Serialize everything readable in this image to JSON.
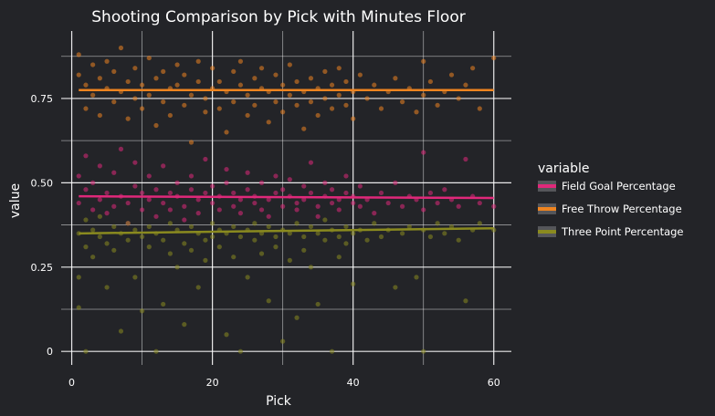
{
  "chart_data": {
    "type": "scatter",
    "title": "Shooting Comparison by Pick with Minutes Floor",
    "xlabel": "Pick",
    "ylabel": "value",
    "xlim": [
      -1.5,
      62.5
    ],
    "ylim": [
      -0.04,
      0.95
    ],
    "x_ticks": [
      0,
      20,
      40,
      60
    ],
    "x_tick_labels": [
      "0",
      "20",
      "40",
      "60"
    ],
    "y_ticks": [
      0,
      0.25,
      0.5,
      0.75
    ],
    "y_tick_labels": [
      "0",
      "0.25",
      "0.50",
      "0.75"
    ],
    "grid": true,
    "legend": {
      "title": "variable",
      "position": "right",
      "entries": [
        "Field Goal Percentage",
        "Free Throw Percentage",
        "Three Point Percentage"
      ]
    },
    "series": [
      {
        "name": "Field Goal Percentage",
        "color": "#e0287a",
        "trend": [
          [
            1,
            0.46
          ],
          [
            60,
            0.455
          ]
        ],
        "points": [
          [
            1,
            0.52
          ],
          [
            1,
            0.44
          ],
          [
            2,
            0.48
          ],
          [
            2,
            0.58
          ],
          [
            3,
            0.42
          ],
          [
            3,
            0.5
          ],
          [
            4,
            0.45
          ],
          [
            4,
            0.55
          ],
          [
            5,
            0.41
          ],
          [
            5,
            0.47
          ],
          [
            6,
            0.43
          ],
          [
            6,
            0.53
          ],
          [
            7,
            0.46
          ],
          [
            7,
            0.6
          ],
          [
            8,
            0.44
          ],
          [
            8,
            0.38
          ],
          [
            9,
            0.49
          ],
          [
            9,
            0.56
          ],
          [
            10,
            0.42
          ],
          [
            10,
            0.47
          ],
          [
            11,
            0.45
          ],
          [
            11,
            0.52
          ],
          [
            12,
            0.4
          ],
          [
            12,
            0.48
          ],
          [
            13,
            0.44
          ],
          [
            13,
            0.55
          ],
          [
            14,
            0.47
          ],
          [
            14,
            0.42
          ],
          [
            15,
            0.5
          ],
          [
            15,
            0.46
          ],
          [
            16,
            0.43
          ],
          [
            16,
            0.39
          ],
          [
            17,
            0.48
          ],
          [
            17,
            0.52
          ],
          [
            18,
            0.45
          ],
          [
            18,
            0.41
          ],
          [
            19,
            0.47
          ],
          [
            19,
            0.57
          ],
          [
            20,
            0.44
          ],
          [
            20,
            0.49
          ],
          [
            21,
            0.42
          ],
          [
            21,
            0.46
          ],
          [
            22,
            0.5
          ],
          [
            22,
            0.54
          ],
          [
            23,
            0.43
          ],
          [
            23,
            0.47
          ],
          [
            24,
            0.45
          ],
          [
            24,
            0.41
          ],
          [
            25,
            0.48
          ],
          [
            25,
            0.53
          ],
          [
            26,
            0.44
          ],
          [
            26,
            0.46
          ],
          [
            27,
            0.42
          ],
          [
            27,
            0.5
          ],
          [
            28,
            0.45
          ],
          [
            28,
            0.4
          ],
          [
            29,
            0.47
          ],
          [
            29,
            0.52
          ],
          [
            30,
            0.43
          ],
          [
            30,
            0.48
          ],
          [
            31,
            0.46
          ],
          [
            31,
            0.51
          ],
          [
            32,
            0.44
          ],
          [
            32,
            0.42
          ],
          [
            33,
            0.49
          ],
          [
            33,
            0.45
          ],
          [
            34,
            0.47
          ],
          [
            34,
            0.56
          ],
          [
            35,
            0.43
          ],
          [
            35,
            0.4
          ],
          [
            36,
            0.46
          ],
          [
            36,
            0.5
          ],
          [
            37,
            0.44
          ],
          [
            37,
            0.48
          ],
          [
            38,
            0.45
          ],
          [
            38,
            0.42
          ],
          [
            39,
            0.47
          ],
          [
            39,
            0.52
          ],
          [
            40,
            0.44
          ],
          [
            40,
            0.46
          ],
          [
            41,
            0.43
          ],
          [
            41,
            0.49
          ],
          [
            42,
            0.45
          ],
          [
            43,
            0.41
          ],
          [
            44,
            0.47
          ],
          [
            45,
            0.44
          ],
          [
            46,
            0.5
          ],
          [
            47,
            0.43
          ],
          [
            48,
            0.46
          ],
          [
            49,
            0.45
          ],
          [
            50,
            0.42
          ],
          [
            50,
            0.59
          ],
          [
            51,
            0.47
          ],
          [
            52,
            0.44
          ],
          [
            53,
            0.48
          ],
          [
            54,
            0.45
          ],
          [
            55,
            0.43
          ],
          [
            56,
            0.57
          ],
          [
            57,
            0.46
          ],
          [
            58,
            0.44
          ],
          [
            60,
            0.43
          ]
        ]
      },
      {
        "name": "Free Throw Percentage",
        "color": "#ee8420",
        "trend": [
          [
            1,
            0.775
          ],
          [
            60,
            0.775
          ]
        ],
        "points": [
          [
            1,
            0.82
          ],
          [
            1,
            0.88
          ],
          [
            2,
            0.72
          ],
          [
            2,
            0.79
          ],
          [
            3,
            0.85
          ],
          [
            3,
            0.76
          ],
          [
            4,
            0.81
          ],
          [
            4,
            0.7
          ],
          [
            5,
            0.78
          ],
          [
            5,
            0.86
          ],
          [
            6,
            0.74
          ],
          [
            6,
            0.83
          ],
          [
            7,
            0.9
          ],
          [
            7,
            0.77
          ],
          [
            8,
            0.8
          ],
          [
            8,
            0.69
          ],
          [
            9,
            0.75
          ],
          [
            9,
            0.84
          ],
          [
            10,
            0.79
          ],
          [
            10,
            0.72
          ],
          [
            11,
            0.87
          ],
          [
            11,
            0.76
          ],
          [
            12,
            0.81
          ],
          [
            12,
            0.67
          ],
          [
            13,
            0.74
          ],
          [
            13,
            0.83
          ],
          [
            14,
            0.78
          ],
          [
            14,
            0.7
          ],
          [
            15,
            0.85
          ],
          [
            15,
            0.79
          ],
          [
            16,
            0.73
          ],
          [
            16,
            0.82
          ],
          [
            17,
            0.76
          ],
          [
            17,
            0.62
          ],
          [
            18,
            0.8
          ],
          [
            18,
            0.86
          ],
          [
            19,
            0.75
          ],
          [
            19,
            0.71
          ],
          [
            20,
            0.78
          ],
          [
            20,
            0.84
          ],
          [
            21,
            0.72
          ],
          [
            21,
            0.8
          ],
          [
            22,
            0.77
          ],
          [
            22,
            0.65
          ],
          [
            23,
            0.83
          ],
          [
            23,
            0.74
          ],
          [
            24,
            0.79
          ],
          [
            24,
            0.86
          ],
          [
            25,
            0.7
          ],
          [
            25,
            0.76
          ],
          [
            26,
            0.81
          ],
          [
            26,
            0.73
          ],
          [
            27,
            0.78
          ],
          [
            27,
            0.84
          ],
          [
            28,
            0.68
          ],
          [
            28,
            0.77
          ],
          [
            29,
            0.82
          ],
          [
            29,
            0.74
          ],
          [
            30,
            0.79
          ],
          [
            30,
            0.71
          ],
          [
            31,
            0.85
          ],
          [
            31,
            0.76
          ],
          [
            32,
            0.73
          ],
          [
            32,
            0.8
          ],
          [
            33,
            0.77
          ],
          [
            33,
            0.66
          ],
          [
            34,
            0.81
          ],
          [
            34,
            0.74
          ],
          [
            35,
            0.78
          ],
          [
            35,
            0.7
          ],
          [
            36,
            0.83
          ],
          [
            36,
            0.75
          ],
          [
            37,
            0.79
          ],
          [
            37,
            0.72
          ],
          [
            38,
            0.76
          ],
          [
            38,
            0.84
          ],
          [
            39,
            0.73
          ],
          [
            39,
            0.8
          ],
          [
            40,
            0.77
          ],
          [
            40,
            0.69
          ],
          [
            41,
            0.82
          ],
          [
            42,
            0.75
          ],
          [
            43,
            0.79
          ],
          [
            44,
            0.72
          ],
          [
            45,
            0.77
          ],
          [
            46,
            0.81
          ],
          [
            47,
            0.74
          ],
          [
            48,
            0.78
          ],
          [
            49,
            0.71
          ],
          [
            50,
            0.86
          ],
          [
            50,
            0.76
          ],
          [
            51,
            0.8
          ],
          [
            52,
            0.73
          ],
          [
            53,
            0.77
          ],
          [
            54,
            0.82
          ],
          [
            55,
            0.75
          ],
          [
            56,
            0.79
          ],
          [
            57,
            0.84
          ],
          [
            58,
            0.72
          ],
          [
            60,
            0.87
          ]
        ]
      },
      {
        "name": "Three Point Percentage",
        "color": "#8a8a1f",
        "trend": [
          [
            1,
            0.35
          ],
          [
            60,
            0.365
          ]
        ],
        "points": [
          [
            1,
            0.35
          ],
          [
            1,
            0.22
          ],
          [
            1,
            0.13
          ],
          [
            2,
            0.39
          ],
          [
            2,
            0.31
          ],
          [
            2,
            0
          ],
          [
            3,
            0.36
          ],
          [
            3,
            0.28
          ],
          [
            4,
            0.34
          ],
          [
            4,
            0.4
          ],
          [
            5,
            0.32
          ],
          [
            5,
            0.19
          ],
          [
            6,
            0.37
          ],
          [
            6,
            0.3
          ],
          [
            7,
            0.35
          ],
          [
            7,
            0.06
          ],
          [
            8,
            0.33
          ],
          [
            8,
            0.38
          ],
          [
            9,
            0.36
          ],
          [
            9,
            0.22
          ],
          [
            10,
            0.34
          ],
          [
            10,
            0.12
          ],
          [
            11,
            0.31
          ],
          [
            11,
            0.37
          ],
          [
            12,
            0.35
          ],
          [
            12,
            0
          ],
          [
            13,
            0.33
          ],
          [
            13,
            0.14
          ],
          [
            14,
            0.38
          ],
          [
            14,
            0.29
          ],
          [
            15,
            0.36
          ],
          [
            15,
            0.25
          ],
          [
            16,
            0.32
          ],
          [
            16,
            0.08
          ],
          [
            17,
            0.37
          ],
          [
            17,
            0.3
          ],
          [
            18,
            0.35
          ],
          [
            18,
            0.19
          ],
          [
            19,
            0.33
          ],
          [
            19,
            0.27
          ],
          [
            20,
            0.38
          ],
          [
            20,
            0.34
          ],
          [
            21,
            0.36
          ],
          [
            21,
            0.31
          ],
          [
            22,
            0.35
          ],
          [
            22,
            0.05
          ],
          [
            23,
            0.37
          ],
          [
            23,
            0.28
          ],
          [
            24,
            0.34
          ],
          [
            24,
            0
          ],
          [
            25,
            0.36
          ],
          [
            25,
            0.22
          ],
          [
            26,
            0.33
          ],
          [
            26,
            0.38
          ],
          [
            27,
            0.35
          ],
          [
            27,
            0.29
          ],
          [
            28,
            0.37
          ],
          [
            28,
            0.15
          ],
          [
            29,
            0.34
          ],
          [
            29,
            0.31
          ],
          [
            30,
            0.36
          ],
          [
            30,
            0.03
          ],
          [
            31,
            0.35
          ],
          [
            31,
            0.27
          ],
          [
            32,
            0.38
          ],
          [
            32,
            0.1
          ],
          [
            33,
            0.34
          ],
          [
            33,
            0.3
          ],
          [
            34,
            0.37
          ],
          [
            34,
            0.25
          ],
          [
            35,
            0.35
          ],
          [
            35,
            0.14
          ],
          [
            36,
            0.33
          ],
          [
            36,
            0.39
          ],
          [
            37,
            0.36
          ],
          [
            37,
            0
          ],
          [
            38,
            0.34
          ],
          [
            38,
            0.28
          ],
          [
            39,
            0.37
          ],
          [
            39,
            0.32
          ],
          [
            40,
            0.35
          ],
          [
            40,
            0.2
          ],
          [
            41,
            0.36
          ],
          [
            42,
            0.33
          ],
          [
            43,
            0.38
          ],
          [
            44,
            0.34
          ],
          [
            45,
            0.36
          ],
          [
            46,
            0.19
          ],
          [
            47,
            0.35
          ],
          [
            48,
            0.37
          ],
          [
            49,
            0.22
          ],
          [
            50,
            0.36
          ],
          [
            50,
            0
          ],
          [
            51,
            0.34
          ],
          [
            52,
            0.38
          ],
          [
            53,
            0.35
          ],
          [
            54,
            0.37
          ],
          [
            55,
            0.33
          ],
          [
            56,
            0.15
          ],
          [
            57,
            0.36
          ],
          [
            58,
            0.38
          ],
          [
            60,
            0.36
          ]
        ]
      }
    ]
  }
}
